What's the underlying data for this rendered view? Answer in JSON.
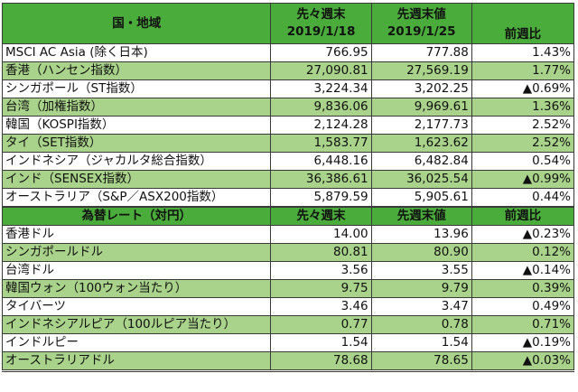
{
  "indices_section": {
    "headers": {
      "name": "国・地域",
      "prev_week_label": "先々週末",
      "prev_week_date": "2019/1/18",
      "last_week_label": "先週末値",
      "last_week_date": "2019/1/25",
      "change": "前週比"
    },
    "rows": [
      {
        "name": "MSCI AC Asia (除く日本)",
        "prev": "766.95",
        "last": "777.88",
        "change": "1.43%",
        "negative": false
      },
      {
        "name": "香港（ハンセン指数）",
        "prev": "27,090.81",
        "last": "27,569.19",
        "change": "1.77%",
        "negative": false
      },
      {
        "name": "シンガポール（ST指数）",
        "prev": "3,224.34",
        "last": "3,202.25",
        "change": "▲0.69%",
        "negative": true
      },
      {
        "name": "台湾（加権指数）",
        "prev": "9,836.06",
        "last": "9,969.61",
        "change": "1.36%",
        "negative": false
      },
      {
        "name": "韓国（KOSPI指数）",
        "prev": "2,124.28",
        "last": "2,177.73",
        "change": "2.52%",
        "negative": false
      },
      {
        "name": "タイ（SET指数）",
        "prev": "1,583.77",
        "last": "1,623.62",
        "change": "2.52%",
        "negative": false
      },
      {
        "name": "インドネシア（ジャカルタ総合指数）",
        "prev": "6,448.16",
        "last": "6,482.84",
        "change": "0.54%",
        "negative": false
      },
      {
        "name": "インド（SENSEX指数）",
        "prev": "36,386.61",
        "last": "36,025.54",
        "change": "▲0.99%",
        "negative": true
      },
      {
        "name": "オーストラリア（S&P／ASX200指数）",
        "prev": "5,879.59",
        "last": "5,905.61",
        "change": "0.44%",
        "negative": false
      }
    ]
  },
  "fx_section": {
    "headers": {
      "name": "為替レート（対円）",
      "prev": "先々週末",
      "last": "先週末値",
      "change": "前週比"
    },
    "rows": [
      {
        "name": "香港ドル",
        "prev": "14.00",
        "last": "13.96",
        "change": "▲0.23%",
        "negative": true
      },
      {
        "name": "シンガポールドル",
        "prev": "80.81",
        "last": "80.90",
        "change": "0.12%",
        "negative": false
      },
      {
        "name": "台湾ドル",
        "prev": "3.56",
        "last": "3.55",
        "change": "▲0.14%",
        "negative": true
      },
      {
        "name": "韓国ウォン（100ウォン当たり）",
        "prev": "9.75",
        "last": "9.79",
        "change": "0.39%",
        "negative": false
      },
      {
        "name": "タイバーツ",
        "prev": "3.46",
        "last": "3.47",
        "change": "0.49%",
        "negative": false
      },
      {
        "name": "インドネシアルピア（100ルピア当たり）",
        "prev": "0.77",
        "last": "0.78",
        "change": "0.71%",
        "negative": false
      },
      {
        "name": "インドルピー",
        "prev": "1.54",
        "last": "1.54",
        "change": "▲0.19%",
        "negative": true
      },
      {
        "name": "オーストラリアドル",
        "prev": "78.68",
        "last": "78.65",
        "change": "▲0.03%",
        "negative": true
      }
    ]
  },
  "colors": {
    "header_green": "#4aac3a",
    "row_alt_green": "#a9d28a",
    "negative_red": "#ff1a1a"
  }
}
